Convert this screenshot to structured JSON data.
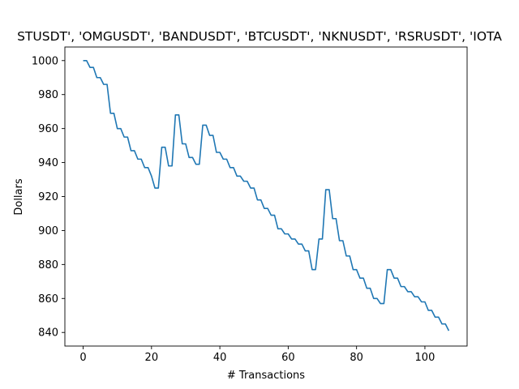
{
  "chart_data": {
    "type": "line",
    "title": "STUSDT', 'OMGUSDT', 'BANDUSDT', 'BTCUSDT', 'NKNUSDT', 'RSRUSDT', 'IOTA",
    "xlabel": "# Transactions",
    "ylabel": "Dollars",
    "xlim": [
      -5.35,
      112.35
    ],
    "ylim": [
      832.0,
      1008.0
    ],
    "xticks": [
      0,
      20,
      40,
      60,
      80,
      100
    ],
    "yticks": [
      840,
      860,
      880,
      900,
      920,
      940,
      960,
      980,
      1000
    ],
    "grid": false,
    "line_color": "#1f77b4",
    "series": [
      {
        "x": [
          0,
          1,
          2,
          3,
          4,
          5,
          6,
          7,
          8,
          9,
          10,
          11,
          12,
          13,
          14,
          15,
          16,
          17,
          18,
          19,
          20,
          21,
          22,
          23,
          24,
          25,
          26,
          27,
          28,
          29,
          30,
          31,
          32,
          33,
          34,
          35,
          36,
          37,
          38,
          39,
          40,
          41,
          42,
          43,
          44,
          45,
          46,
          47,
          48,
          49,
          50,
          51,
          52,
          53,
          54,
          55,
          56,
          57,
          58,
          59,
          60,
          61,
          62,
          63,
          64,
          65,
          66,
          67,
          68,
          69,
          70,
          71,
          72,
          73,
          74,
          75,
          76,
          77,
          78,
          79,
          80,
          81,
          82,
          83,
          84,
          85,
          86,
          87,
          88,
          89,
          90,
          91,
          92,
          93,
          94,
          95,
          96,
          97,
          98,
          99,
          100,
          101,
          102,
          103,
          104,
          105,
          106,
          107
        ],
        "y": [
          1000,
          1000,
          996,
          996,
          990,
          990,
          986,
          986,
          969,
          969,
          960,
          960,
          955,
          955,
          947,
          947,
          942,
          942,
          937,
          937,
          932,
          925,
          925,
          949,
          949,
          938,
          938,
          968,
          968,
          951,
          951,
          943,
          943,
          939,
          939,
          962,
          962,
          956,
          956,
          946,
          946,
          942,
          942,
          937,
          937,
          932,
          932,
          929,
          929,
          925,
          925,
          918,
          918,
          913,
          913,
          909,
          909,
          901,
          901,
          898,
          898,
          895,
          895,
          892,
          892,
          888,
          888,
          877,
          877,
          895,
          895,
          924,
          924,
          907,
          907,
          894,
          894,
          885,
          885,
          877,
          877,
          872,
          872,
          866,
          866,
          860,
          860,
          857,
          857,
          877,
          877,
          872,
          872,
          867,
          867,
          864,
          864,
          861,
          861,
          858,
          858,
          853,
          853,
          849,
          849,
          845,
          845,
          841
        ]
      }
    ]
  }
}
